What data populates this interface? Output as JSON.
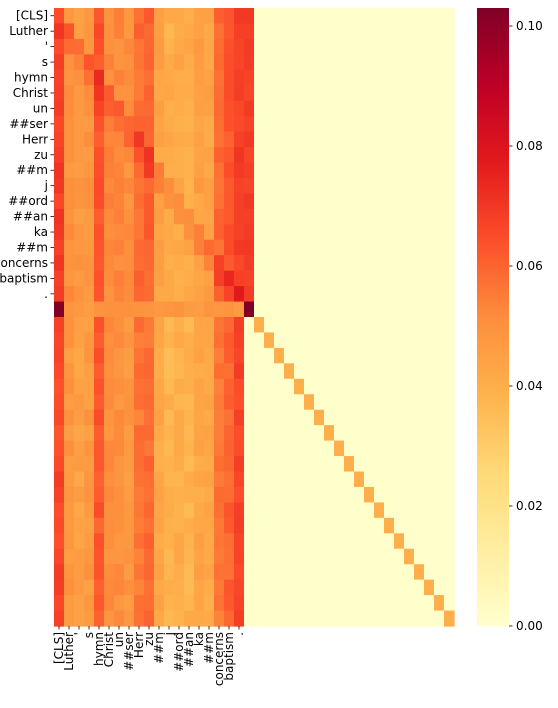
{
  "chart_data": {
    "type": "heatmap",
    "row_labels": [
      "[CLS]",
      "Luther",
      "'",
      "s",
      "hymn",
      "Christ",
      "un",
      "##ser",
      "Herr",
      "zu",
      "##m",
      "j",
      "##ord",
      "##an",
      "ka",
      "##m",
      "concerns",
      "baptism",
      "."
    ],
    "col_labels": [
      "[CLS]",
      "Luther",
      "'",
      "s",
      "hymn",
      "Christ",
      "un",
      "##ser",
      "Herr",
      "zu",
      "##m",
      "j",
      "##ord",
      "##an",
      "ka",
      "##m",
      "concerns",
      "baptism",
      "."
    ],
    "n_rows": 40,
    "n_cols": 40,
    "colorbar": {
      "min": 0.0,
      "max": 0.103,
      "ticks": [
        "0.00",
        "0.02",
        "0.04",
        "0.06",
        "0.08",
        "0.10"
      ],
      "tick_values": [
        0.0,
        0.02,
        0.04,
        0.06,
        0.08,
        0.1
      ]
    },
    "colormap": "YlOrRd",
    "approx_values": {
      "padding_region": 0.0,
      "token_column_base": [
        0.068,
        0.05,
        0.047,
        0.049,
        0.064,
        0.052,
        0.052,
        0.05,
        0.058,
        0.06,
        0.044,
        0.04,
        0.042,
        0.041,
        0.045,
        0.044,
        0.058,
        0.062,
        0.068
      ],
      "separator_row": {
        "first": 0.103,
        "middle": 0.048,
        "last": 0.103
      },
      "diagonal_after_tokens": 0.04
    }
  }
}
